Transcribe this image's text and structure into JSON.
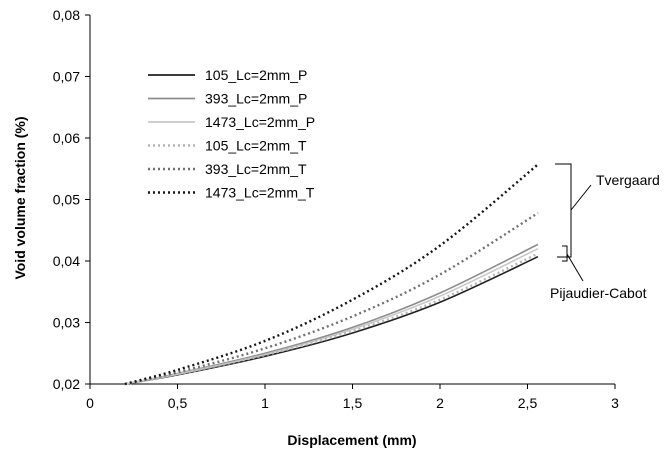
{
  "chart_data": {
    "type": "line",
    "xlabel": "Displacement (mm)",
    "ylabel": "Void volume fraction (%)",
    "xlim": [
      0,
      3
    ],
    "ylim": [
      0.02,
      0.08
    ],
    "x_ticks": [
      "0",
      "0,5",
      "1",
      "1,5",
      "2",
      "2,5",
      "3"
    ],
    "y_ticks": [
      "0,02",
      "0,03",
      "0,04",
      "0,05",
      "0,06",
      "0,07",
      "0,08"
    ],
    "grid": false,
    "legend_position": "top-left",
    "series": [
      {
        "name": "105_Lc=2mm_P",
        "color": "#202020",
        "dash": "solid",
        "x": [
          0.2,
          0.5,
          1.0,
          1.5,
          2.0,
          2.56
        ],
        "y": [
          0.02,
          0.0215,
          0.0245,
          0.0283,
          0.0333,
          0.0407
        ]
      },
      {
        "name": "393_Lc=2mm_P",
        "color": "#8c8c8c",
        "dash": "solid",
        "x": [
          0.2,
          0.5,
          1.0,
          1.5,
          2.0,
          2.56
        ],
        "y": [
          0.02,
          0.0217,
          0.025,
          0.0292,
          0.0348,
          0.0427
        ]
      },
      {
        "name": "1473_Lc=2mm_P",
        "color": "#c8c8c8",
        "dash": "solid",
        "x": [
          0.2,
          0.5,
          1.0,
          1.5,
          2.0,
          2.56
        ],
        "y": [
          0.02,
          0.0216,
          0.0248,
          0.0289,
          0.0343,
          0.042
        ]
      },
      {
        "name": "105_Lc=2mm_T",
        "color": "#b4b4b4",
        "dash": "dotted",
        "x": [
          0.2,
          0.5,
          1.0,
          1.5,
          2.0,
          2.56
        ],
        "y": [
          0.02,
          0.0216,
          0.0247,
          0.0286,
          0.0337,
          0.0412
        ]
      },
      {
        "name": "393_Lc=2mm_T",
        "color": "#707070",
        "dash": "dotted",
        "x": [
          0.2,
          0.5,
          1.0,
          1.5,
          2.0,
          2.56
        ],
        "y": [
          0.02,
          0.0219,
          0.0258,
          0.031,
          0.0378,
          0.0478
        ]
      },
      {
        "name": "1473_Lc=2mm_T",
        "color": "#151515",
        "dash": "dotted",
        "x": [
          0.2,
          0.5,
          1.0,
          1.5,
          2.0,
          2.56
        ],
        "y": [
          0.02,
          0.0223,
          0.027,
          0.0337,
          0.0425,
          0.0557
        ]
      }
    ],
    "annotations": [
      {
        "text": "Tvergaard",
        "bracket_y": [
          0.0413,
          0.0558
        ]
      },
      {
        "text": "Pijaudier-Cabot",
        "bracket_y": [
          0.0406,
          0.0428
        ]
      }
    ]
  }
}
